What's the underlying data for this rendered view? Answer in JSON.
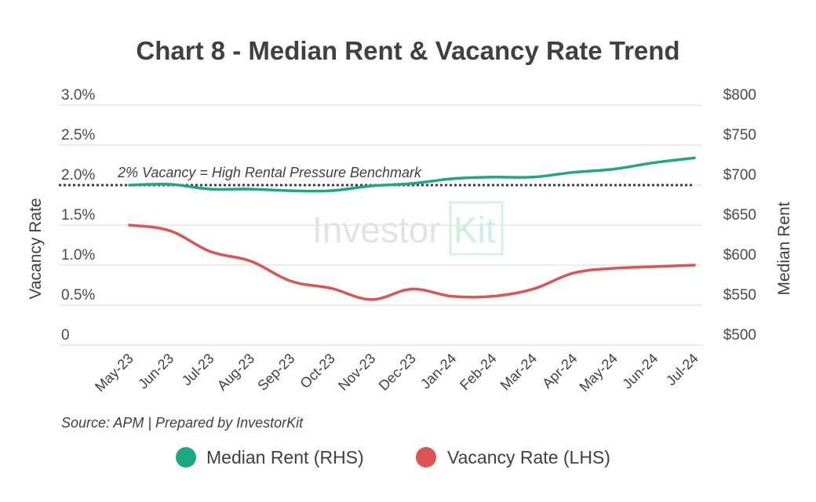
{
  "chart_data": {
    "type": "line",
    "title": "Chart 8 - Median Rent & Vacancy Rate Trend",
    "categories": [
      "May-23",
      "Jun-23",
      "Jul-23",
      "Aug-23",
      "Sep-23",
      "Oct-23",
      "Nov-23",
      "Dec-23",
      "Jan-24",
      "Feb-24",
      "Mar-24",
      "Apr-24",
      "May-24",
      "Jun-24",
      "Jul-24"
    ],
    "left_axis": {
      "label": "Vacancy Rate",
      "range": [
        0,
        3.0
      ],
      "ticks": [
        0,
        0.5,
        1.0,
        1.5,
        2.0,
        2.5,
        3.0
      ],
      "tick_labels": [
        "0",
        "0.5%",
        "1.0%",
        "1.5%",
        "2.0%",
        "2.5%",
        "3.0%"
      ]
    },
    "right_axis": {
      "label": "Median Rent",
      "range": [
        500,
        800
      ],
      "ticks": [
        500,
        550,
        600,
        650,
        700,
        750,
        800
      ],
      "tick_labels": [
        "$500",
        "$550",
        "$600",
        "$650",
        "$700",
        "$750",
        "$800"
      ]
    },
    "series": [
      {
        "name": "Median Rent (RHS)",
        "axis": "right",
        "color": "#1aa981",
        "values": [
          700,
          701,
          695,
          695,
          693,
          693,
          699,
          702,
          708,
          710,
          710,
          716,
          720,
          728,
          734
        ]
      },
      {
        "name": "Vacancy Rate (LHS)",
        "axis": "left",
        "color": "#e05353",
        "values": [
          1.5,
          1.43,
          1.17,
          1.05,
          0.8,
          0.71,
          0.57,
          0.7,
          0.61,
          0.61,
          0.7,
          0.9,
          0.96,
          0.98,
          1.0
        ]
      }
    ],
    "benchmark": {
      "value": 2.0,
      "axis": "left",
      "label": "2% Vacancy = High Rental Pressure Benchmark"
    },
    "source": "Source: APM | Prepared by InvestorKit",
    "watermark": {
      "text_a": "Investor",
      "text_b": "Kit"
    },
    "grid": true,
    "legend_position": "bottom"
  }
}
